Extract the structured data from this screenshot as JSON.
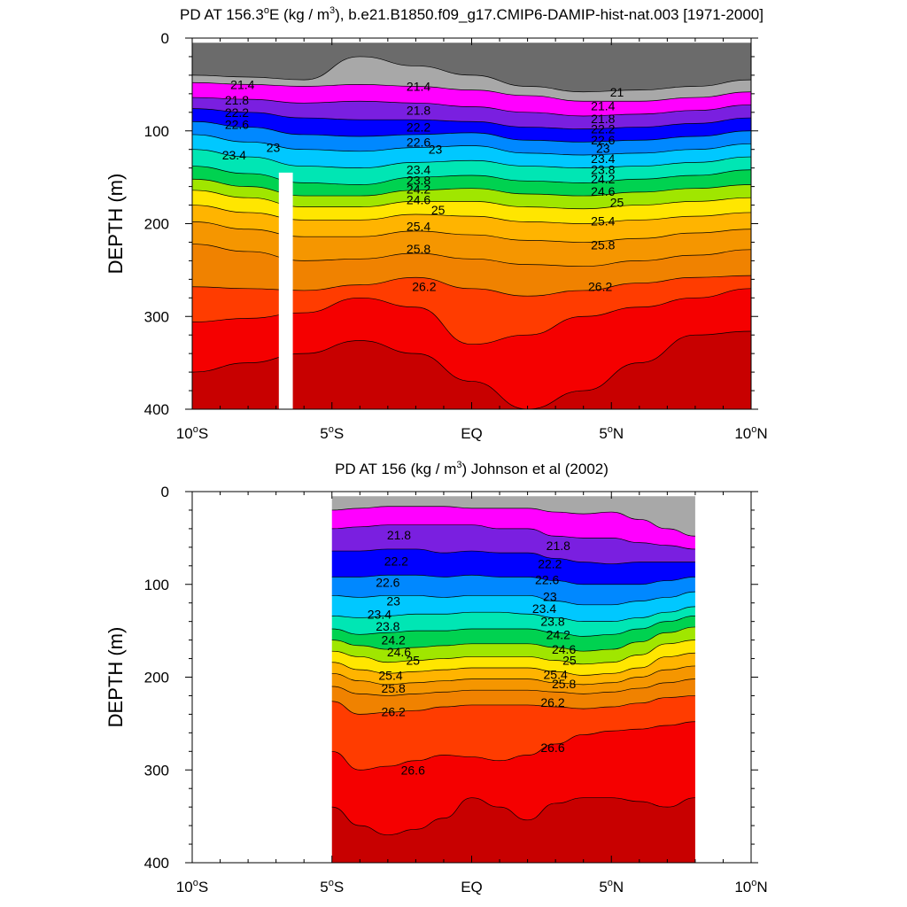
{
  "chart_data": [
    {
      "type": "contour",
      "title_prefix": "PD AT 156.3",
      "title_superscript": "o",
      "title_middle": "E (kg / m",
      "title_units_superscript": "3",
      "title_suffix": "), b.e21.B1850.f09_g17.CMIP6-DAMIP-hist-nat.003 [1971-2000]",
      "ylabel": "DEPTH (m)",
      "xlim": [
        -10,
        10
      ],
      "ylim": [
        400,
        0
      ],
      "x_ticks": [
        {
          "value": -10,
          "label": "10",
          "sup": "o",
          "suffix": "S"
        },
        {
          "value": -5,
          "label": "5",
          "sup": "o",
          "suffix": "S"
        },
        {
          "value": 0,
          "label": "EQ",
          "sup": "",
          "suffix": ""
        },
        {
          "value": 5,
          "label": "5",
          "sup": "o",
          "suffix": "N"
        },
        {
          "value": 10,
          "label": "10",
          "sup": "o",
          "suffix": "N"
        }
      ],
      "y_ticks": [
        {
          "value": 0,
          "label": "0"
        },
        {
          "value": 100,
          "label": "100"
        },
        {
          "value": 200,
          "label": "200"
        },
        {
          "value": 300,
          "label": "300"
        },
        {
          "value": 400,
          "label": "400"
        }
      ],
      "data_lat_range": [
        -10,
        10
      ],
      "surface_depth": 5,
      "missing_column_lat": [
        -6.9,
        -6.4
      ],
      "missing_column_top": 145,
      "isopycnal_depths_at_lat": {
        "lat": [
          -10,
          -8,
          -6,
          -4,
          -2,
          0,
          2,
          4,
          6,
          8,
          10
        ],
        "21.0": [
          40,
          42,
          45,
          20,
          30,
          40,
          52,
          58,
          56,
          52,
          45
        ],
        "21.4": [
          48,
          50,
          52,
          50,
          52,
          56,
          62,
          68,
          68,
          64,
          58
        ],
        "21.8": [
          64,
          66,
          70,
          68,
          70,
          74,
          80,
          84,
          82,
          78,
          72
        ],
        "22.2": [
          76,
          80,
          86,
          88,
          88,
          90,
          96,
          98,
          96,
          92,
          86
        ],
        "22.6": [
          90,
          96,
          104,
          106,
          104,
          102,
          110,
          112,
          110,
          106,
          100
        ],
        "23.0": [
          104,
          112,
          120,
          122,
          118,
          116,
          124,
          126,
          124,
          120,
          114
        ],
        "23.4": [
          120,
          128,
          138,
          140,
          134,
          132,
          138,
          140,
          138,
          134,
          128
        ],
        "23.8": [
          138,
          146,
          156,
          158,
          150,
          148,
          154,
          156,
          152,
          148,
          142
        ],
        "24.2": [
          152,
          160,
          170,
          170,
          164,
          162,
          168,
          170,
          166,
          162,
          158
        ],
        "24.6": [
          164,
          172,
          182,
          182,
          176,
          176,
          182,
          184,
          180,
          176,
          172
        ],
        "25.0": [
          180,
          188,
          196,
          196,
          190,
          192,
          198,
          200,
          196,
          192,
          188
        ],
        "25.4": [
          198,
          206,
          214,
          214,
          208,
          212,
          218,
          220,
          216,
          210,
          206
        ],
        "25.8": [
          222,
          230,
          240,
          238,
          232,
          238,
          244,
          246,
          240,
          234,
          228
        ],
        "26.2": [
          268,
          270,
          272,
          266,
          258,
          270,
          278,
          272,
          264,
          258,
          256
        ],
        "26.6": [
          306,
          302,
          296,
          280,
          290,
          330,
          320,
          300,
          290,
          280,
          270
        ],
        "27.0": [
          360,
          350,
          340,
          326,
          340,
          370,
          400,
          380,
          350,
          320,
          316
        ]
      },
      "contour_labels": [
        {
          "text": "21",
          "lat": 5.2,
          "depth": 58
        },
        {
          "text": "21.4",
          "lat": -8.2,
          "depth": 50
        },
        {
          "text": "21.4",
          "lat": -1.9,
          "depth": 52
        },
        {
          "text": "21.4",
          "lat": 4.7,
          "depth": 73
        },
        {
          "text": "21.8",
          "lat": -8.4,
          "depth": 67
        },
        {
          "text": "21.8",
          "lat": -1.9,
          "depth": 78
        },
        {
          "text": "21.8",
          "lat": 4.7,
          "depth": 87
        },
        {
          "text": "22.2",
          "lat": -8.4,
          "depth": 80
        },
        {
          "text": "22.2",
          "lat": -1.9,
          "depth": 96
        },
        {
          "text": "22.2",
          "lat": 4.7,
          "depth": 98
        },
        {
          "text": "22.6",
          "lat": -8.4,
          "depth": 93
        },
        {
          "text": "22.6",
          "lat": -1.9,
          "depth": 112
        },
        {
          "text": "22.6",
          "lat": 4.7,
          "depth": 110
        },
        {
          "text": "23",
          "lat": -7.1,
          "depth": 118
        },
        {
          "text": "23",
          "lat": -1.3,
          "depth": 120
        },
        {
          "text": "23",
          "lat": 4.7,
          "depth": 119
        },
        {
          "text": "23.4",
          "lat": -8.5,
          "depth": 126
        },
        {
          "text": "23.4",
          "lat": -1.9,
          "depth": 142
        },
        {
          "text": "23.4",
          "lat": 4.7,
          "depth": 130
        },
        {
          "text": "23.8",
          "lat": -1.9,
          "depth": 153
        },
        {
          "text": "23.8",
          "lat": 4.7,
          "depth": 142
        },
        {
          "text": "24.2",
          "lat": -1.9,
          "depth": 163
        },
        {
          "text": "24.2",
          "lat": 4.7,
          "depth": 152
        },
        {
          "text": "24.6",
          "lat": -1.9,
          "depth": 174
        },
        {
          "text": "24.6",
          "lat": 4.7,
          "depth": 165
        },
        {
          "text": "25",
          "lat": -1.2,
          "depth": 185
        },
        {
          "text": "25",
          "lat": 5.2,
          "depth": 177
        },
        {
          "text": "25.4",
          "lat": -1.9,
          "depth": 203
        },
        {
          "text": "25.4",
          "lat": 4.7,
          "depth": 197
        },
        {
          "text": "25.8",
          "lat": -1.9,
          "depth": 227
        },
        {
          "text": "25.8",
          "lat": 4.7,
          "depth": 223
        },
        {
          "text": "26.2",
          "lat": -1.7,
          "depth": 268
        },
        {
          "text": "26.2",
          "lat": 4.6,
          "depth": 268
        }
      ]
    },
    {
      "type": "contour",
      "title_prefix": "PD AT 156 (kg / m",
      "title_units_superscript": "3",
      "title_suffix": ") Johnson et al (2002)",
      "ylabel": "DEPTH (m)",
      "xlim": [
        -10,
        10
      ],
      "ylim": [
        400,
        0
      ],
      "x_ticks": [
        {
          "value": -10,
          "label": "10",
          "sup": "o",
          "suffix": "S"
        },
        {
          "value": -5,
          "label": "5",
          "sup": "o",
          "suffix": "S"
        },
        {
          "value": 0,
          "label": "EQ",
          "sup": "",
          "suffix": ""
        },
        {
          "value": 5,
          "label": "5",
          "sup": "o",
          "suffix": "N"
        },
        {
          "value": 10,
          "label": "10",
          "sup": "o",
          "suffix": "N"
        }
      ],
      "y_ticks": [
        {
          "value": 0,
          "label": "0"
        },
        {
          "value": 100,
          "label": "100"
        },
        {
          "value": 200,
          "label": "200"
        },
        {
          "value": 300,
          "label": "300"
        },
        {
          "value": 400,
          "label": "400"
        }
      ],
      "data_lat_range": [
        -5,
        8
      ],
      "surface_depth": 5,
      "isopycnal_depths_at_lat": {
        "lat": [
          -5,
          -4,
          -3,
          -2,
          -1,
          0,
          1,
          2,
          3,
          4,
          5,
          6,
          7,
          8
        ],
        "21.4": [
          20,
          18,
          16,
          16,
          16,
          18,
          18,
          18,
          22,
          24,
          22,
          30,
          40,
          48
        ],
        "21.8": [
          40,
          38,
          36,
          36,
          36,
          36,
          40,
          40,
          48,
          50,
          50,
          55,
          58,
          62
        ],
        "22.2": [
          64,
          64,
          62,
          62,
          66,
          64,
          66,
          66,
          72,
          76,
          78,
          76,
          76,
          76
        ],
        "22.6": [
          92,
          92,
          90,
          90,
          92,
          90,
          92,
          92,
          96,
          100,
          100,
          100,
          96,
          92
        ],
        "23.0": [
          112,
          114,
          112,
          112,
          114,
          112,
          112,
          112,
          118,
          122,
          122,
          118,
          114,
          108
        ],
        "23.4": [
          134,
          136,
          134,
          132,
          132,
          130,
          130,
          132,
          136,
          140,
          140,
          136,
          130,
          124
        ],
        "23.8": [
          148,
          154,
          152,
          150,
          150,
          148,
          148,
          148,
          152,
          156,
          154,
          148,
          140,
          134
        ],
        "24.2": [
          160,
          166,
          170,
          168,
          166,
          164,
          164,
          164,
          168,
          172,
          170,
          162,
          152,
          146
        ],
        "24.6": [
          172,
          178,
          184,
          182,
          180,
          178,
          178,
          178,
          182,
          186,
          184,
          176,
          164,
          160
        ],
        "25.0": [
          184,
          192,
          196,
          194,
          192,
          190,
          190,
          190,
          194,
          198,
          196,
          190,
          178,
          174
        ],
        "25.4": [
          196,
          204,
          208,
          206,
          204,
          202,
          202,
          202,
          206,
          208,
          206,
          200,
          192,
          188
        ],
        "25.8": [
          210,
          218,
          220,
          218,
          216,
          214,
          214,
          214,
          216,
          218,
          216,
          212,
          206,
          202
        ],
        "26.2": [
          226,
          240,
          238,
          236,
          232,
          230,
          230,
          230,
          232,
          234,
          232,
          228,
          222,
          220
        ],
        "26.6": [
          280,
          300,
          296,
          290,
          284,
          286,
          290,
          284,
          272,
          262,
          258,
          256,
          252,
          248
        ],
        "27.0": [
          340,
          360,
          370,
          364,
          352,
          330,
          340,
          354,
          336,
          330,
          330,
          334,
          340,
          330
        ]
      },
      "contour_labels": [
        {
          "text": "21.8",
          "lat": -2.6,
          "depth": 47
        },
        {
          "text": "21.8",
          "lat": 3.1,
          "depth": 58
        },
        {
          "text": "22.2",
          "lat": -2.7,
          "depth": 75
        },
        {
          "text": "22.2",
          "lat": 2.8,
          "depth": 78
        },
        {
          "text": "22.6",
          "lat": -3.0,
          "depth": 98
        },
        {
          "text": "22.6",
          "lat": 2.7,
          "depth": 95
        },
        {
          "text": "23",
          "lat": -2.8,
          "depth": 118
        },
        {
          "text": "23",
          "lat": 2.8,
          "depth": 113
        },
        {
          "text": "23.4",
          "lat": -3.3,
          "depth": 132
        },
        {
          "text": "23.4",
          "lat": 2.6,
          "depth": 126
        },
        {
          "text": "23.8",
          "lat": -3.0,
          "depth": 145
        },
        {
          "text": "23.8",
          "lat": 2.9,
          "depth": 140
        },
        {
          "text": "24.2",
          "lat": -2.8,
          "depth": 160
        },
        {
          "text": "24.2",
          "lat": 3.1,
          "depth": 154
        },
        {
          "text": "24.6",
          "lat": -2.6,
          "depth": 173
        },
        {
          "text": "24.6",
          "lat": 3.3,
          "depth": 170
        },
        {
          "text": "25",
          "lat": -2.1,
          "depth": 182
        },
        {
          "text": "25",
          "lat": 3.5,
          "depth": 182
        },
        {
          "text": "25.4",
          "lat": -2.9,
          "depth": 198
        },
        {
          "text": "25.4",
          "lat": 3.0,
          "depth": 197
        },
        {
          "text": "25.8",
          "lat": -2.8,
          "depth": 212
        },
        {
          "text": "25.8",
          "lat": 3.3,
          "depth": 207
        },
        {
          "text": "26.2",
          "lat": -2.8,
          "depth": 237
        },
        {
          "text": "26.2",
          "lat": 2.9,
          "depth": 227
        },
        {
          "text": "26.6",
          "lat": -2.1,
          "depth": 300
        },
        {
          "text": "26.6",
          "lat": 2.9,
          "depth": 276
        }
      ]
    }
  ],
  "fill_levels": [
    21.0,
    21.4,
    21.8,
    22.2,
    22.6,
    23.0,
    23.4,
    23.8,
    24.2,
    24.6,
    25.0,
    25.4,
    25.8,
    26.2,
    26.6,
    27.0
  ],
  "fill_colors": [
    "#6b6b6b",
    "#a8a8a8",
    "#ff00ff",
    "#cc33ff",
    "#8a2be2",
    "#3c14e6",
    "#0000ff",
    "#0050ff",
    "#0090ff",
    "#00b4ff",
    "#00d2f0",
    "#00e6c8",
    "#00e68c",
    "#00d246",
    "#00c800",
    "#96e600",
    "#ffff00",
    "#ffd200",
    "#ffb432",
    "#f5a000",
    "#f08c00",
    "#ff5a00",
    "#ff2800",
    "#ff0000",
    "#e60000",
    "#c80000"
  ],
  "fill_bands": [
    {
      "from": null,
      "to": "21.0",
      "color": "#6b6b6b"
    },
    {
      "from": "21.0",
      "to": "21.4",
      "color": "#a8a8a8"
    },
    {
      "from": "21.4",
      "to": "21.8",
      "color": "#ff00ff"
    },
    {
      "from": "21.8",
      "to": "22.2",
      "color": "#7a1fe0"
    },
    {
      "from": "22.2",
      "to": "22.6",
      "color": "#0000ff"
    },
    {
      "from": "22.6",
      "to": "23.0",
      "color": "#0088ff"
    },
    {
      "from": "23.0",
      "to": "23.4",
      "color": "#00c8ff"
    },
    {
      "from": "23.4",
      "to": "23.8",
      "color": "#00e6b4"
    },
    {
      "from": "23.8",
      "to": "24.2",
      "color": "#00d250"
    },
    {
      "from": "24.2",
      "to": "24.6",
      "color": "#a0e600"
    },
    {
      "from": "24.6",
      "to": "25.0",
      "color": "#ffe600"
    },
    {
      "from": "25.0",
      "to": "25.4",
      "color": "#ffb400"
    },
    {
      "from": "25.4",
      "to": "25.8",
      "color": "#f59600"
    },
    {
      "from": "25.8",
      "to": "26.2",
      "color": "#f08200"
    },
    {
      "from": "26.2",
      "to": "26.6",
      "color": "#ff3c00"
    },
    {
      "from": "26.6",
      "to": "27.0",
      "color": "#f50000"
    },
    {
      "from": "27.0",
      "to": null,
      "color": "#c80000"
    }
  ]
}
